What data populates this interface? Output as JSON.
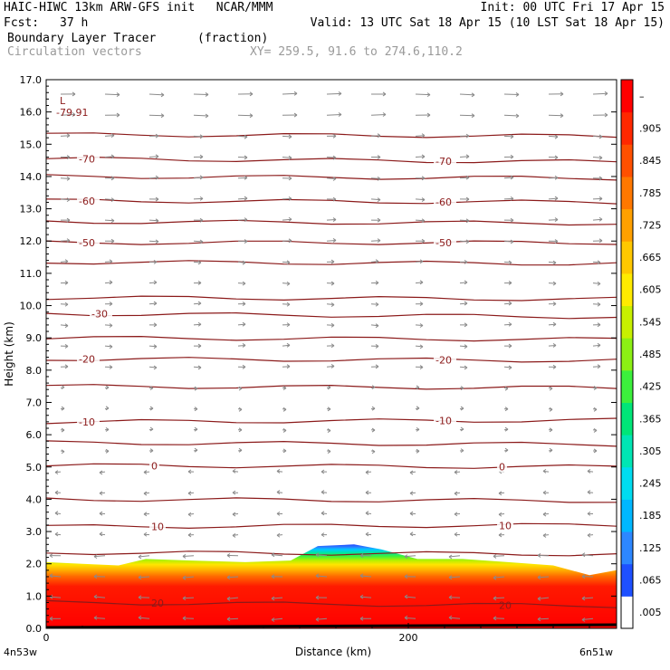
{
  "header": {
    "title": "HAIC-HIWC 13km ARW-GFS init   NCAR/MMM",
    "init": "Init: 00 UTC Fri 17 Apr 15",
    "fcst_label": "Fcst:",
    "fcst_value": "37 h",
    "valid": "Valid: 13 UTC Sat 18 Apr 15 (10 LST Sat 18 Apr 15)",
    "field_name": "Boundary Layer Tracer",
    "field_unit": "(fraction)",
    "vectors_label": "Circulation vectors",
    "xy_label": "XY= 259.5, 91.6 to 274.6,110.2"
  },
  "chart_data": {
    "type": "heatmap",
    "xlabel": "Distance (km)",
    "ylabel": "Height (km)",
    "xlim": [
      0,
      315
    ],
    "ylim": [
      0,
      17
    ],
    "x_ticks": [
      0,
      200
    ],
    "x_tick_labels": [
      "0",
      "200"
    ],
    "x_end_labels": {
      "left": "4n53w",
      "right": "6n51w"
    },
    "y_ticks": [
      0,
      1,
      2,
      3,
      4,
      5,
      6,
      7,
      8,
      9,
      10,
      11,
      12,
      13,
      14,
      15,
      16,
      17
    ],
    "y_tick_labels": [
      "0.0",
      "1.0",
      "2.0",
      "3.0",
      "4.0",
      "5.0",
      "6.0",
      "7.0",
      "8.0",
      "9.0",
      "10.0",
      "11.0",
      "12.0",
      "13.0",
      "14.0",
      "15.0",
      "16.0",
      "17.0"
    ],
    "colorbar": {
      "labels": [
        ".005",
        ".065",
        ".125",
        ".185",
        ".245",
        ".305",
        ".365",
        ".425",
        ".485",
        ".545",
        ".605",
        ".665",
        ".725",
        ".785",
        ".845",
        ".905",
        "–"
      ],
      "colors": [
        "#ffffff",
        "#1e50ff",
        "#2d87ff",
        "#00b7ff",
        "#00dcf0",
        "#00e6b4",
        "#00e678",
        "#3cf03c",
        "#8cf014",
        "#c8f000",
        "#ffeb00",
        "#ffc800",
        "#ffa000",
        "#ff7800",
        "#ff5000",
        "#ff2800",
        "#ff0000"
      ]
    },
    "tracer_top_km": [
      [
        0,
        2.05
      ],
      [
        20,
        2.0
      ],
      [
        40,
        1.95
      ],
      [
        55,
        2.15
      ],
      [
        80,
        2.1
      ],
      [
        110,
        2.05
      ],
      [
        135,
        2.1
      ],
      [
        150,
        2.55
      ],
      [
        170,
        2.6
      ],
      [
        185,
        2.45
      ],
      [
        205,
        2.15
      ],
      [
        230,
        2.15
      ],
      [
        255,
        2.05
      ],
      [
        280,
        1.95
      ],
      [
        300,
        1.65
      ],
      [
        315,
        1.8
      ]
    ],
    "temperature_contours": [
      {
        "value": -70,
        "label": "-70",
        "left_km": 14.55,
        "right_km": 14.45
      },
      {
        "value": -60,
        "label": "-60",
        "left_km": 13.25,
        "right_km": 13.2
      },
      {
        "value": -50,
        "label": "-50",
        "left_km": 11.95,
        "right_km": 11.95
      },
      {
        "value": -30,
        "label": "-30",
        "left_km": 9.75,
        "right_km": 9.65
      },
      {
        "value": -20,
        "label": "-20",
        "left_km": 8.35,
        "right_km": 8.3
      },
      {
        "value": -10,
        "label": "-10",
        "left_km": 6.4,
        "right_km": 6.45
      },
      {
        "value": 0,
        "label": "0",
        "left_km": 5.05,
        "right_km": 5.0
      },
      {
        "value": 10,
        "label": "10",
        "left_km": 3.15,
        "right_km": 3.2
      },
      {
        "value": 20,
        "label": "20",
        "left_km": 0.8,
        "right_km": 0.7
      }
    ],
    "unlabeled_contour_heights_km": [
      15.3,
      14.0,
      12.6,
      11.35,
      10.25,
      9.0,
      7.5,
      5.75,
      4.0,
      2.35
    ],
    "min_marker": {
      "symbol": "L",
      "value": "-79.91"
    }
  }
}
